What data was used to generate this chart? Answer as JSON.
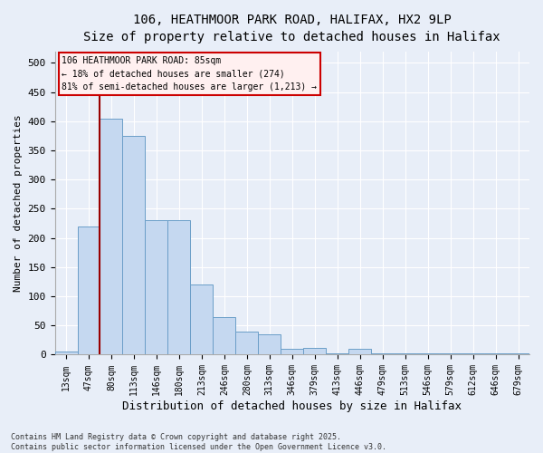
{
  "title_line1": "106, HEATHMOOR PARK ROAD, HALIFAX, HX2 9LP",
  "title_line2": "Size of property relative to detached houses in Halifax",
  "xlabel": "Distribution of detached houses by size in Halifax",
  "ylabel": "Number of detached properties",
  "bar_color": "#c5d8f0",
  "bar_edge_color": "#6b9ec8",
  "categories": [
    "13sqm",
    "47sqm",
    "80sqm",
    "113sqm",
    "146sqm",
    "180sqm",
    "213sqm",
    "246sqm",
    "280sqm",
    "313sqm",
    "346sqm",
    "379sqm",
    "413sqm",
    "446sqm",
    "479sqm",
    "513sqm",
    "546sqm",
    "579sqm",
    "612sqm",
    "646sqm",
    "679sqm"
  ],
  "values": [
    5,
    220,
    405,
    375,
    230,
    230,
    120,
    65,
    40,
    35,
    10,
    12,
    2,
    10,
    2,
    2,
    2,
    2,
    2,
    2,
    2
  ],
  "ylim": [
    0,
    520
  ],
  "yticks": [
    0,
    50,
    100,
    150,
    200,
    250,
    300,
    350,
    400,
    450,
    500
  ],
  "vline_x": 1.5,
  "vline_color": "#990000",
  "annotation_text": "106 HEATHMOOR PARK ROAD: 85sqm\n← 18% of detached houses are smaller (274)\n81% of semi-detached houses are larger (1,213) →",
  "annotation_box_facecolor": "#fff0f0",
  "annotation_box_edgecolor": "#cc0000",
  "footer_text": "Contains HM Land Registry data © Crown copyright and database right 2025.\nContains public sector information licensed under the Open Government Licence v3.0.",
  "background_color": "#e8eef8",
  "grid_color": "#ffffff",
  "title_fontsize": 10,
  "subtitle_fontsize": 9,
  "axis_label_fontsize": 8,
  "tick_fontsize": 7,
  "footer_fontsize": 6
}
